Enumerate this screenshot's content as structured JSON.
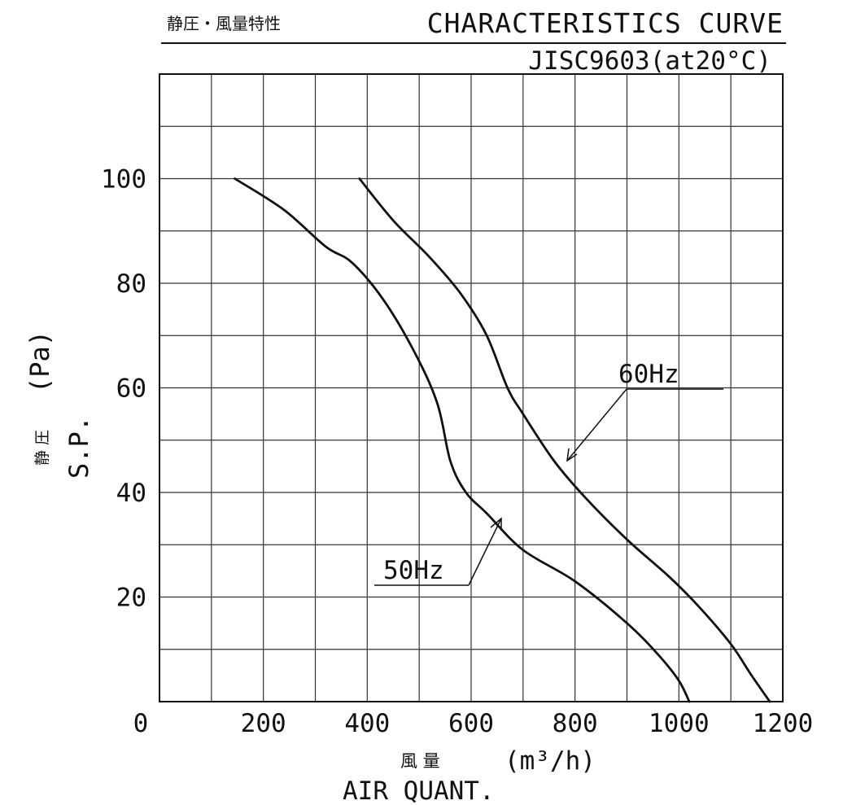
{
  "header": {
    "jp_title": "静圧・風量特性",
    "title": "CHARACTERISTICS CURVE",
    "standard": "JISC9603(at20°C)"
  },
  "axes": {
    "y_label_jp": "静 圧",
    "y_label_en": "S.P.",
    "y_unit": "(Pa)",
    "x_label_jp": "風  量",
    "x_unit": "(m³/h)",
    "x_label_en": "AIR QUANT.",
    "origin_label": "0"
  },
  "legend": {
    "label_60": "60Hz",
    "label_50": "50Hz"
  },
  "chart_data": {
    "type": "line",
    "title": "CHARACTERISTICS CURVE",
    "subtitle": "JISC9603(at20°C)",
    "xlabel": "AIR QUANT. (m³/h)",
    "ylabel": "S.P. (Pa)",
    "xlim": [
      0,
      1200
    ],
    "ylim": [
      0,
      120
    ],
    "x_ticks": [
      200,
      400,
      600,
      800,
      1000,
      1200
    ],
    "y_ticks": [
      20,
      40,
      60,
      80,
      100
    ],
    "grid": true,
    "grid_x_step": 100,
    "grid_y_step": 10,
    "line_color": "#111111",
    "series": [
      {
        "name": "60Hz",
        "points": [
          [
            385,
            100
          ],
          [
            450,
            92
          ],
          [
            520,
            85
          ],
          [
            580,
            78
          ],
          [
            630,
            70
          ],
          [
            670,
            60
          ],
          [
            700,
            55
          ],
          [
            760,
            46
          ],
          [
            820,
            39
          ],
          [
            900,
            31
          ],
          [
            980,
            24
          ],
          [
            1040,
            18
          ],
          [
            1100,
            11
          ],
          [
            1140,
            5
          ],
          [
            1175,
            0
          ]
        ]
      },
      {
        "name": "50Hz",
        "points": [
          [
            145,
            100
          ],
          [
            240,
            94
          ],
          [
            320,
            87
          ],
          [
            370,
            84
          ],
          [
            430,
            77
          ],
          [
            490,
            67
          ],
          [
            535,
            57
          ],
          [
            560,
            46
          ],
          [
            590,
            40
          ],
          [
            630,
            36
          ],
          [
            700,
            29
          ],
          [
            800,
            23
          ],
          [
            900,
            15
          ],
          [
            960,
            9
          ],
          [
            1000,
            4
          ],
          [
            1020,
            0
          ]
        ]
      }
    ]
  }
}
